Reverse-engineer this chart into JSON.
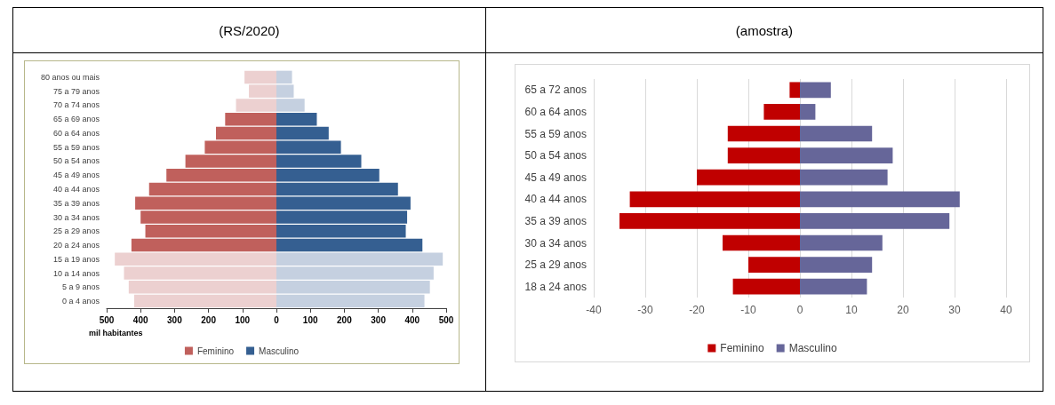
{
  "chart_data": [
    {
      "type": "bar",
      "title": "(RS/2020)",
      "orientation": "horizontal",
      "xlabel": "mil habitantes",
      "categories": [
        "80 anos ou mais",
        "75 a 79 anos",
        "70 a 74 anos",
        "65 a 69 anos",
        "60 a 64 anos",
        "55 a 59 anos",
        "50 a 54 anos",
        "45 a 49 anos",
        "40 a 44 anos",
        "35 a 39 anos",
        "30 a 34 anos",
        "25 a 29 anos",
        "20 a 24 anos",
        "15 a 19 anos",
        "10 a 14 anos",
        "5 a 9 anos",
        "0 a 4 anos"
      ],
      "series": [
        {
          "name": "Feminino",
          "color": "#c0605c",
          "colors": [
            "#ecd0d0",
            "#ecd0d0",
            "#ecd0d0",
            "#c0605c",
            "#c0605c",
            "#c0605c",
            "#c0605c",
            "#c0605c",
            "#c0605c",
            "#c0605c",
            "#c0605c",
            "#c0605c",
            "#c0605c",
            "#ecd0d0",
            "#ecd0d0",
            "#ecd0d0",
            "#ecd0d0"
          ],
          "values": [
            -94,
            -81,
            -119,
            -151,
            -178,
            -211,
            -268,
            -324,
            -375,
            -416,
            -400,
            -386,
            -427,
            -476,
            -449,
            -435,
            -419
          ]
        },
        {
          "name": "Masculino",
          "color": "#355f91",
          "colors": [
            "#c5d0e0",
            "#c5d0e0",
            "#c5d0e0",
            "#355f91",
            "#355f91",
            "#355f91",
            "#355f91",
            "#355f91",
            "#355f91",
            "#355f91",
            "#355f91",
            "#355f91",
            "#355f91",
            "#c5d0e0",
            "#c5d0e0",
            "#c5d0e0",
            "#c5d0e0"
          ],
          "values": [
            46,
            51,
            83,
            119,
            154,
            190,
            250,
            303,
            358,
            395,
            385,
            381,
            430,
            490,
            463,
            452,
            436
          ]
        }
      ],
      "xlim": [
        -500,
        500
      ],
      "xticks": [
        {
          "value": -500,
          "label": "500"
        },
        {
          "value": -400,
          "label": "400"
        },
        {
          "value": -300,
          "label": "300"
        },
        {
          "value": -200,
          "label": "200"
        },
        {
          "value": -100,
          "label": "100"
        },
        0,
        100,
        200,
        300,
        400,
        500
      ],
      "stacked": true,
      "legend": "bottom"
    },
    {
      "type": "bar",
      "title": "(amostra)",
      "orientation": "horizontal",
      "categories": [
        "65 a 72 anos",
        "60 a 64 anos",
        "55 a 59 anos",
        "50 a 54 anos",
        "45 a 49 anos",
        "40 a 44 anos",
        "35 a 39 anos",
        "30 a 34 anos",
        "25 a 29 anos",
        "18 a 24 anos"
      ],
      "series": [
        {
          "name": "Feminino",
          "color": "#c00000",
          "values": [
            -2,
            -7,
            -14,
            -14,
            -20,
            -33,
            -35,
            -15,
            -10,
            -13
          ]
        },
        {
          "name": "Masculino",
          "color": "#666699",
          "values": [
            6,
            3,
            14,
            18,
            17,
            31,
            29,
            16,
            14,
            13
          ]
        }
      ],
      "xlim": [
        -40,
        40
      ],
      "xticks": [
        -40,
        -30,
        -20,
        -10,
        0,
        10,
        20,
        30,
        40
      ],
      "grid": "x",
      "stacked": true,
      "legend": "bottom"
    }
  ]
}
